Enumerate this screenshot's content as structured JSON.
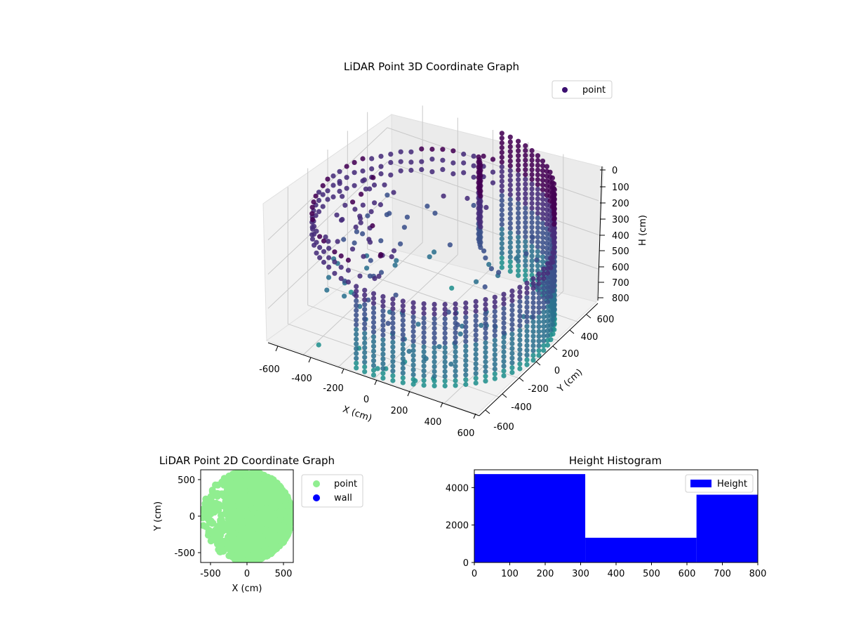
{
  "chart_data": [
    {
      "type": "scatter3d",
      "title": "LiDAR Point 3D Coordinate Graph",
      "xlabel": "X (cm)",
      "ylabel": "Y (cm)",
      "zlabel": "H (cm)",
      "xlim": [
        -600,
        600
      ],
      "ylim": [
        -600,
        600
      ],
      "zlim": [
        0,
        800
      ],
      "z_inverted": true,
      "xticks": [
        "-600",
        "-400",
        "-200",
        "0",
        "200",
        "400",
        "600"
      ],
      "yticks": [
        "-600",
        "-400",
        "-200",
        "0",
        "200",
        "400",
        "600"
      ],
      "zticks": [
        "0",
        "100",
        "200",
        "300",
        "400",
        "500",
        "600",
        "700",
        "800"
      ],
      "grid": true,
      "legend": {
        "position": "top-right",
        "entries": [
          "point"
        ]
      },
      "colormap": "viridis",
      "colors": {
        "legend_marker": "#3b0f70",
        "high": "#440154",
        "low": "#31688e"
      },
      "series": [
        {
          "name": "point",
          "structure": "cylindrical wall of radius ~600 cm spanning H 0-800, partial ring near H 200-300, scattered interior points"
        }
      ]
    },
    {
      "type": "scatter",
      "title": "LiDAR Point 2D Coordinate Graph",
      "xlabel": "X (cm)",
      "ylabel": "Y (cm)",
      "xlim": [
        -640,
        640
      ],
      "ylim": [
        -640,
        640
      ],
      "xticks": [
        "-500",
        "0",
        "500"
      ],
      "yticks": [
        "500",
        "0",
        "-500"
      ],
      "legend": {
        "position": "right",
        "entries": [
          "point",
          "wall"
        ]
      },
      "series": [
        {
          "name": "point",
          "color": "#90ee90",
          "structure": "dense disc of radius ~600 cm, sparse toward negative X"
        },
        {
          "name": "wall",
          "color": "#0000ff",
          "points": []
        }
      ]
    },
    {
      "type": "histogram",
      "title": "Height Histogram",
      "xlim": [
        0,
        800
      ],
      "ylim": [
        0,
        4950
      ],
      "xticks": [
        "0",
        "100",
        "200",
        "300",
        "400",
        "500",
        "600",
        "700",
        "800"
      ],
      "yticks": [
        "0",
        "2000",
        "4000"
      ],
      "legend": {
        "position": "top-right",
        "entries": [
          "Height"
        ]
      },
      "color": "#0000ff",
      "bins": [
        {
          "start": 0,
          "end": 313,
          "count": 4720
        },
        {
          "start": 313,
          "end": 627,
          "count": 1320
        },
        {
          "start": 627,
          "end": 800,
          "count": 3620
        }
      ]
    }
  ]
}
